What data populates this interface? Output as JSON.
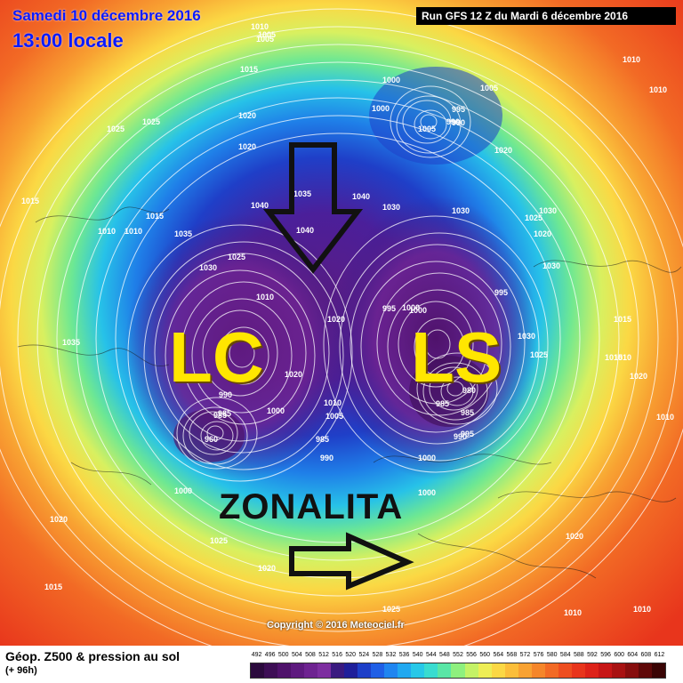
{
  "header": {
    "date": "Samedi 10 décembre 2016",
    "time": "13:00 locale",
    "run": "Run GFS 12 Z du Mardi 6 décembre 2016"
  },
  "annotations": {
    "lc": "LC",
    "ls": "LS",
    "zonalita": "ZONALITA"
  },
  "copyright": "Copyright © 2016 Meteociel.fr",
  "footer": {
    "title": "Géop. Z500 & pression au sol",
    "lead": "(+ 96h)"
  },
  "scale": {
    "labels": [
      "492",
      "496",
      "500",
      "504",
      "508",
      "512",
      "516",
      "520",
      "524",
      "528",
      "532",
      "536",
      "540",
      "544",
      "548",
      "552",
      "556",
      "560",
      "564",
      "568",
      "572",
      "576",
      "580",
      "584",
      "588",
      "592",
      "596",
      "600",
      "604",
      "608",
      "612"
    ],
    "colors": [
      "#2b0a3d",
      "#3d0e55",
      "#4f126b",
      "#5e1a7f",
      "#6e2391",
      "#7d2ea0",
      "#3a1a80",
      "#1f1f9a",
      "#1d3fc8",
      "#1f5fe6",
      "#1f85f0",
      "#21a8f0",
      "#27c8e8",
      "#39dcd0",
      "#59e6a6",
      "#8ef07e",
      "#c4f266",
      "#eeee55",
      "#fbd844",
      "#fbbe3a",
      "#f8a232",
      "#f5862a",
      "#f26a25",
      "#ee4e20",
      "#e8351c",
      "#dd2219",
      "#c71616",
      "#a81212",
      "#870e0e",
      "#5f0909",
      "#3a0505"
    ]
  },
  "pressure_labels": [
    "1010",
    "1005",
    "1015",
    "1020",
    "1025",
    "1020",
    "1015",
    "1010",
    "1015",
    "1035",
    "1040",
    "1035",
    "1040",
    "1030",
    "1025",
    "1010",
    "1020",
    "1040",
    "1000",
    "995",
    "990",
    "1005",
    "1020",
    "1030",
    "1025",
    "1020",
    "1030",
    "1010",
    "995",
    "1000",
    "1025",
    "1030",
    "1015",
    "1010",
    "1020",
    "1015",
    "1010",
    "980",
    "985",
    "990",
    "985",
    "995",
    "990",
    "985",
    "1000",
    "1010",
    "1005",
    "1005",
    "1020",
    "1000",
    "985",
    "990",
    "960",
    "985",
    "1000",
    "1000",
    "1020",
    "1025",
    "1020",
    "1015",
    "1025",
    "1020",
    "1010",
    "1010",
    "1035",
    "1010",
    "1000",
    "1005",
    "990",
    "1000",
    "1030",
    "1010",
    "995",
    "1030",
    "1025"
  ]
}
